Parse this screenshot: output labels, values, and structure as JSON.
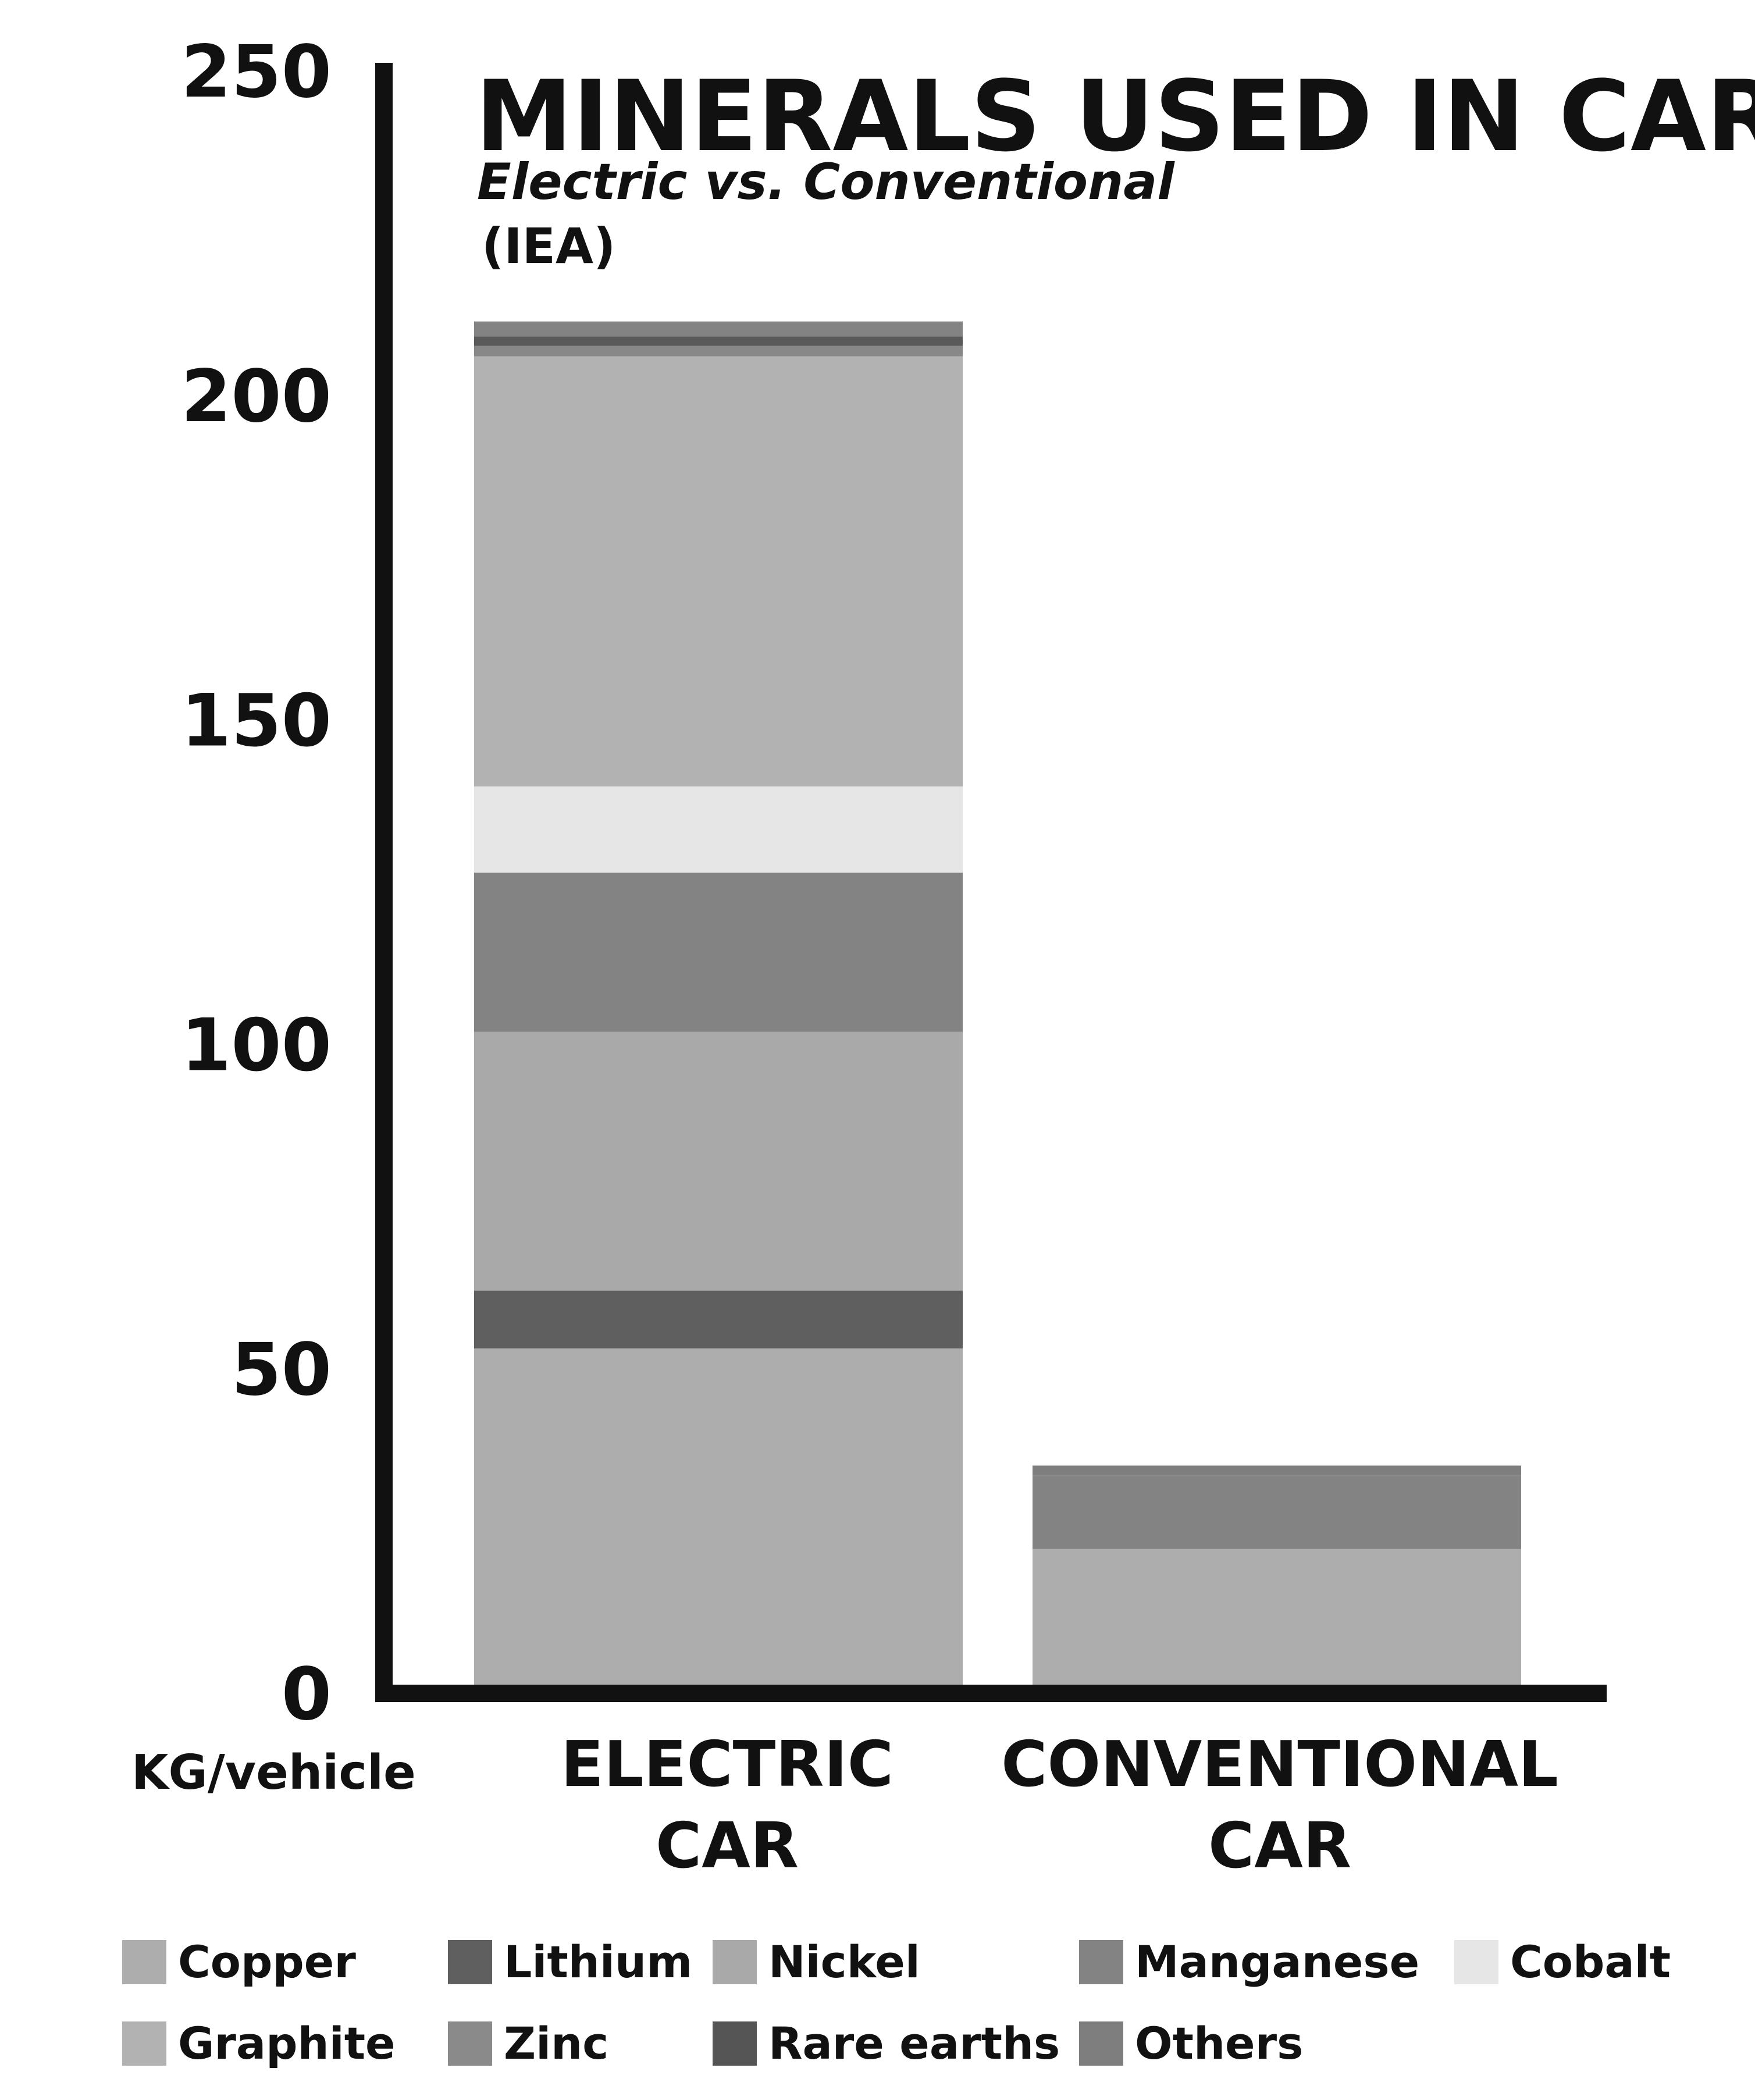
{
  "chart_data": {
    "type": "bar",
    "stacked": true,
    "title": "MINERALS USED IN CARS",
    "subtitle": "Electric vs. Conventional",
    "source": "(IEA)",
    "ylabel": "KG/vehicle",
    "ylim": [
      0,
      250
    ],
    "yticks": [
      "0",
      "50",
      "100",
      "150",
      "200",
      "250"
    ],
    "categories": [
      "ELECTRIC CAR",
      "CONVENTIONAL CAR"
    ],
    "category_lines": [
      [
        "ELECTRIC",
        "CAR"
      ],
      [
        "CONVENTIONAL",
        "CAR"
      ]
    ],
    "series": [
      {
        "name": "Copper",
        "color": "#adadad",
        "values": [
          53.2,
          22.3
        ]
      },
      {
        "name": "Lithium",
        "color": "#5f5f5f",
        "values": [
          8.9,
          0
        ]
      },
      {
        "name": "Nickel",
        "color": "#a9a9a9",
        "values": [
          39.9,
          0
        ]
      },
      {
        "name": "Manganese",
        "color": "#838383",
        "values": [
          24.5,
          11.2
        ]
      },
      {
        "name": "Cobalt",
        "color": "#e6e6e6",
        "values": [
          13.3,
          0
        ]
      },
      {
        "name": "Graphite",
        "color": "#b2b2b2",
        "values": [
          66.3,
          0
        ]
      },
      {
        "name": "Zinc",
        "color": "#8a8a8a",
        "values": [
          0.1,
          0.2
        ]
      },
      {
        "name": "Rare earths",
        "color": "#555555",
        "values": [
          0.5,
          0
        ]
      },
      {
        "name": "Others",
        "color": "#7e7e7e",
        "values": [
          0.3,
          0.3
        ]
      }
    ],
    "extra_bands": [
      {
        "category": 0,
        "from": 206.1,
        "to": 207.7,
        "color": "#888888"
      },
      {
        "category": 0,
        "from": 207.7,
        "to": 209.1,
        "color": "#5a5a5a"
      },
      {
        "category": 0,
        "from": 209.1,
        "to": 211.4,
        "color": "#838383"
      },
      {
        "category": 1,
        "from": 33.7,
        "to": 35.1,
        "color": "#7e7e7e"
      }
    ],
    "legend_position": "bottom",
    "grid": false
  }
}
